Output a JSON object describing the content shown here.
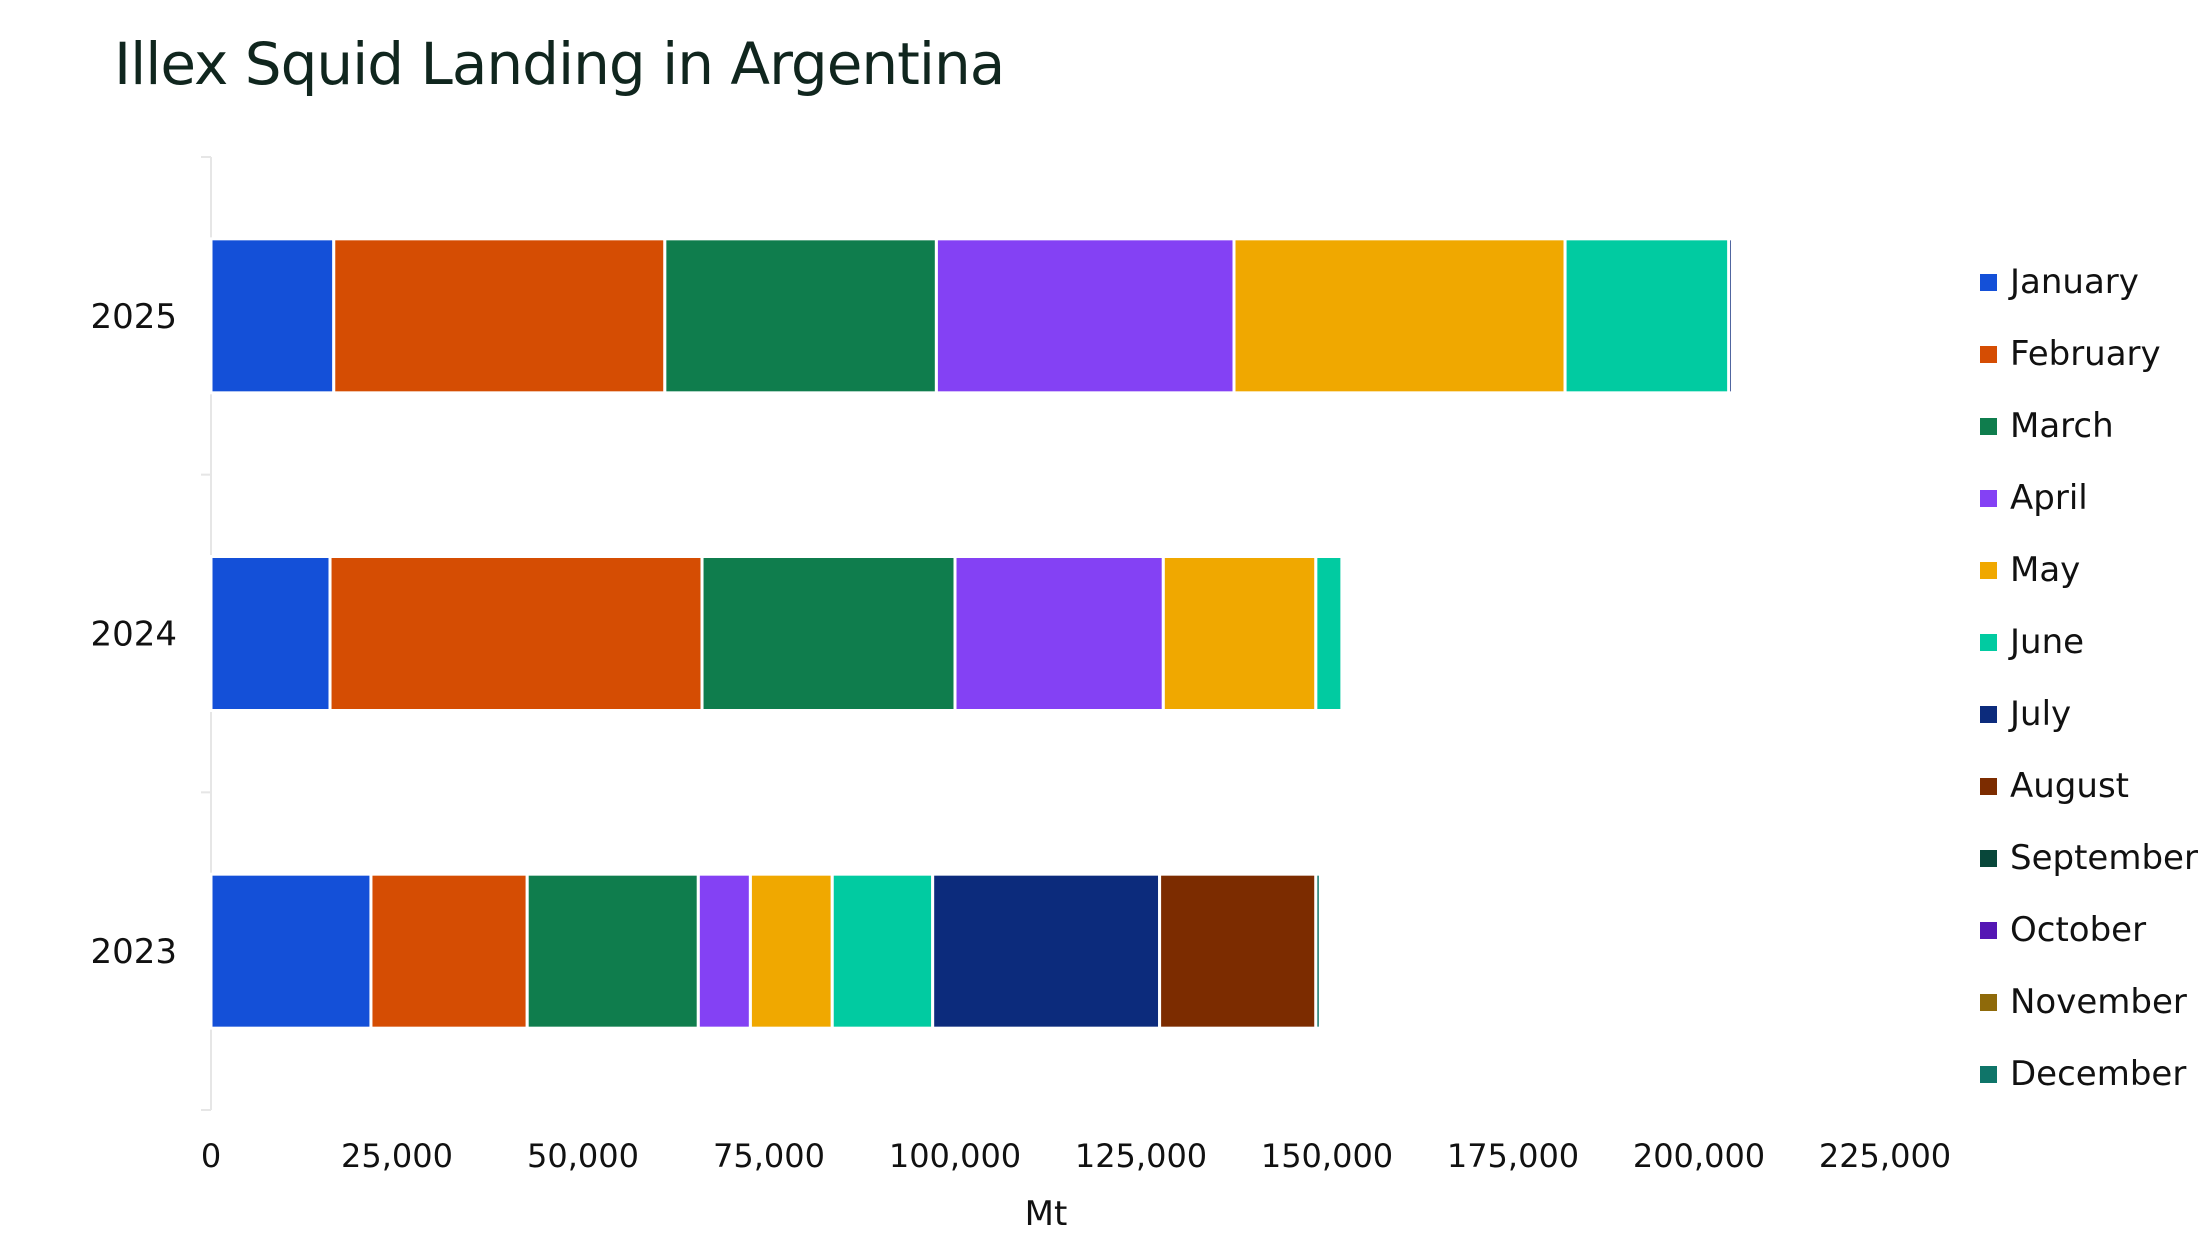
{
  "chart_data": {
    "type": "bar",
    "orientation": "horizontal",
    "stacked": true,
    "title": "Illex Squid Landing in Argentina",
    "xlabel": "Mt",
    "ylabel": "",
    "xlim": [
      0,
      225000
    ],
    "x_ticks": [
      "0",
      "25,000",
      "50,000",
      "75,000",
      "100,000",
      "125,000",
      "150,000",
      "175,000",
      "200,000",
      "225,000"
    ],
    "categories": [
      "2025",
      "2024",
      "2023"
    ],
    "grid": false,
    "legend_position": "right",
    "series": [
      {
        "name": "January",
        "color": "#1450d8",
        "values": [
          16500,
          16000,
          21500
        ]
      },
      {
        "name": "February",
        "color": "#d54d03",
        "values": [
          44500,
          50000,
          21000
        ]
      },
      {
        "name": "March",
        "color": "#0f7d4d",
        "values": [
          36500,
          34000,
          23000
        ]
      },
      {
        "name": "April",
        "color": "#8441f4",
        "values": [
          40000,
          28000,
          7000
        ]
      },
      {
        "name": "May",
        "color": "#f0a800",
        "values": [
          44500,
          20500,
          11000
        ]
      },
      {
        "name": "June",
        "color": "#01cba1",
        "values": [
          22000,
          3500,
          13500
        ]
      },
      {
        "name": "July",
        "color": "#0c2b7c",
        "values": [
          500,
          0,
          30500
        ]
      },
      {
        "name": "August",
        "color": "#7c2c00",
        "values": [
          0,
          0,
          21000
        ]
      },
      {
        "name": "September",
        "color": "#08473a",
        "values": [
          0,
          0,
          0
        ]
      },
      {
        "name": "October",
        "color": "#5416b4",
        "values": [
          0,
          0,
          0
        ]
      },
      {
        "name": "November",
        "color": "#8f6a0a",
        "values": [
          0,
          0,
          0
        ]
      },
      {
        "name": "December",
        "color": "#0f7569",
        "values": [
          0,
          0,
          600
        ]
      }
    ]
  }
}
